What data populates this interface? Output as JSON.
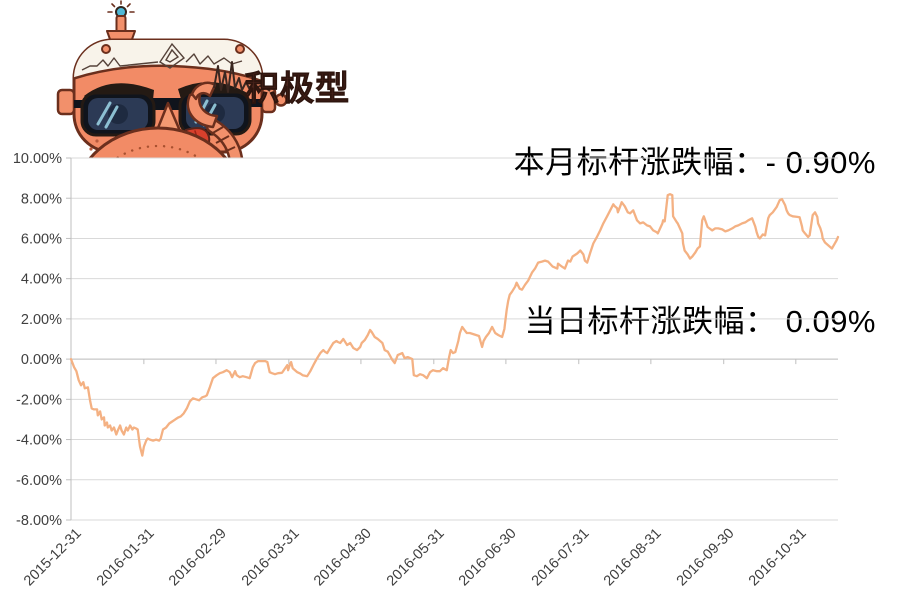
{
  "header": {
    "line1": "本月标杆涨跌幅：- 0.90%",
    "line2": "当日标杆涨跌幅： 0.09%",
    "mascot_badge": "积极型"
  },
  "colors": {
    "line": "#F4B183",
    "gridline": "#D9D9D9",
    "axis": "#BFBFBF",
    "tick_label": "#3F3F3F",
    "headline_text": "#000000",
    "mascot_skin": "#F28B66",
    "mascot_outline": "#6B2F1D",
    "badge_text": "#4A241C"
  },
  "chart_data": {
    "type": "line",
    "title": "",
    "xlabel": "",
    "ylabel": "",
    "legend": "none",
    "grid": "horizontal",
    "ylim": [
      -8,
      10
    ],
    "y_ticks": [
      {
        "value": 10,
        "label": "10.00%"
      },
      {
        "value": 8,
        "label": "8.00%"
      },
      {
        "value": 6,
        "label": "6.00%"
      },
      {
        "value": 4,
        "label": "4.00%"
      },
      {
        "value": 2,
        "label": "2.00%"
      },
      {
        "value": 0,
        "label": "0.00%"
      },
      {
        "value": -2,
        "label": "-2.00%"
      },
      {
        "value": -4,
        "label": "-4.00%"
      },
      {
        "value": -6,
        "label": "-6.00%"
      },
      {
        "value": -8,
        "label": "-8.00%"
      }
    ],
    "x_ticks": [
      {
        "label": "2015-12-31",
        "pos": 0.0
      },
      {
        "label": "2016-01-31",
        "pos": 0.095
      },
      {
        "label": "2016-02-29",
        "pos": 0.189
      },
      {
        "label": "2016-03-31",
        "pos": 0.284
      },
      {
        "label": "2016-04-30",
        "pos": 0.378
      },
      {
        "label": "2016-05-31",
        "pos": 0.473
      },
      {
        "label": "2016-06-30",
        "pos": 0.567
      },
      {
        "label": "2016-07-31",
        "pos": 0.662
      },
      {
        "label": "2016-08-31",
        "pos": 0.756
      },
      {
        "label": "2016-09-30",
        "pos": 0.851
      },
      {
        "label": "2016-10-31",
        "pos": 0.945
      }
    ],
    "points": [
      [
        0.0,
        0.0
      ],
      [
        0.004,
        -0.4
      ],
      [
        0.007,
        -0.6
      ],
      [
        0.01,
        -1.05
      ],
      [
        0.013,
        -1.3
      ],
      [
        0.016,
        -1.15
      ],
      [
        0.018,
        -1.45
      ],
      [
        0.022,
        -1.4
      ],
      [
        0.025,
        -2.1
      ],
      [
        0.027,
        -2.45
      ],
      [
        0.03,
        -2.5
      ],
      [
        0.034,
        -2.5
      ],
      [
        0.035,
        -2.8
      ],
      [
        0.038,
        -2.6
      ],
      [
        0.04,
        -3.0
      ],
      [
        0.043,
        -2.9
      ],
      [
        0.044,
        -3.3
      ],
      [
        0.047,
        -3.15
      ],
      [
        0.048,
        -3.4
      ],
      [
        0.051,
        -3.3
      ],
      [
        0.053,
        -3.55
      ],
      [
        0.056,
        -3.4
      ],
      [
        0.059,
        -3.75
      ],
      [
        0.061,
        -3.55
      ],
      [
        0.064,
        -3.3
      ],
      [
        0.066,
        -3.55
      ],
      [
        0.069,
        -3.75
      ],
      [
        0.072,
        -3.4
      ],
      [
        0.074,
        -3.55
      ],
      [
        0.077,
        -3.3
      ],
      [
        0.08,
        -3.5
      ],
      [
        0.082,
        -3.4
      ],
      [
        0.085,
        -3.45
      ],
      [
        0.087,
        -3.5
      ],
      [
        0.09,
        -4.35
      ],
      [
        0.093,
        -4.8
      ],
      [
        0.095,
        -4.35
      ],
      [
        0.098,
        -4.05
      ],
      [
        0.1,
        -3.95
      ],
      [
        0.103,
        -4.0
      ],
      [
        0.107,
        -4.05
      ],
      [
        0.111,
        -4.0
      ],
      [
        0.115,
        -4.05
      ],
      [
        0.117,
        -3.95
      ],
      [
        0.12,
        -3.5
      ],
      [
        0.124,
        -3.4
      ],
      [
        0.128,
        -3.2
      ],
      [
        0.132,
        -3.1
      ],
      [
        0.136,
        -3.0
      ],
      [
        0.14,
        -2.9
      ],
      [
        0.143,
        -2.85
      ],
      [
        0.147,
        -2.7
      ],
      [
        0.151,
        -2.45
      ],
      [
        0.155,
        -2.1
      ],
      [
        0.159,
        -1.95
      ],
      [
        0.163,
        -2.0
      ],
      [
        0.167,
        -2.05
      ],
      [
        0.171,
        -1.9
      ],
      [
        0.175,
        -1.85
      ],
      [
        0.177,
        -1.8
      ],
      [
        0.181,
        -1.4
      ],
      [
        0.185,
        -0.95
      ],
      [
        0.19,
        -0.8
      ],
      [
        0.194,
        -0.7
      ],
      [
        0.198,
        -0.65
      ],
      [
        0.203,
        -0.55
      ],
      [
        0.207,
        -0.65
      ],
      [
        0.21,
        -0.9
      ],
      [
        0.214,
        -0.6
      ],
      [
        0.216,
        -0.8
      ],
      [
        0.22,
        -0.9
      ],
      [
        0.224,
        -0.85
      ],
      [
        0.229,
        -0.9
      ],
      [
        0.233,
        -0.95
      ],
      [
        0.237,
        -0.4
      ],
      [
        0.24,
        -0.2
      ],
      [
        0.244,
        -0.1
      ],
      [
        0.249,
        -0.1
      ],
      [
        0.253,
        -0.1
      ],
      [
        0.256,
        -0.15
      ],
      [
        0.259,
        -0.65
      ],
      [
        0.262,
        -0.7
      ],
      [
        0.266,
        -0.75
      ],
      [
        0.27,
        -0.7
      ],
      [
        0.275,
        -0.68
      ],
      [
        0.276,
        -0.63
      ],
      [
        0.282,
        -0.3
      ],
      [
        0.283,
        -0.55
      ],
      [
        0.286,
        -0.2
      ],
      [
        0.287,
        -0.15
      ],
      [
        0.289,
        -0.45
      ],
      [
        0.295,
        -0.65
      ],
      [
        0.299,
        -0.72
      ],
      [
        0.302,
        -0.8
      ],
      [
        0.308,
        -0.85
      ],
      [
        0.312,
        -0.6
      ],
      [
        0.316,
        -0.3
      ],
      [
        0.321,
        0.05
      ],
      [
        0.325,
        0.3
      ],
      [
        0.329,
        0.45
      ],
      [
        0.331,
        0.37
      ],
      [
        0.334,
        0.3
      ],
      [
        0.338,
        0.55
      ],
      [
        0.342,
        0.8
      ],
      [
        0.346,
        0.9
      ],
      [
        0.348,
        0.85
      ],
      [
        0.351,
        0.8
      ],
      [
        0.355,
        1.0
      ],
      [
        0.36,
        0.7
      ],
      [
        0.364,
        0.8
      ],
      [
        0.368,
        0.55
      ],
      [
        0.373,
        0.45
      ],
      [
        0.377,
        0.6
      ],
      [
        0.379,
        0.8
      ],
      [
        0.383,
        0.95
      ],
      [
        0.387,
        1.2
      ],
      [
        0.39,
        1.45
      ],
      [
        0.392,
        1.35
      ],
      [
        0.396,
        1.1
      ],
      [
        0.4,
        1.0
      ],
      [
        0.406,
        0.8
      ],
      [
        0.409,
        0.45
      ],
      [
        0.413,
        0.37
      ],
      [
        0.419,
        -0.05
      ],
      [
        0.422,
        -0.2
      ],
      [
        0.426,
        0.2
      ],
      [
        0.432,
        0.3
      ],
      [
        0.435,
        0.05
      ],
      [
        0.439,
        0.1
      ],
      [
        0.445,
        0.0
      ],
      [
        0.447,
        -0.8
      ],
      [
        0.451,
        -0.85
      ],
      [
        0.455,
        -0.75
      ],
      [
        0.459,
        -0.8
      ],
      [
        0.464,
        -0.95
      ],
      [
        0.468,
        -0.65
      ],
      [
        0.472,
        -0.55
      ],
      [
        0.477,
        -0.6
      ],
      [
        0.481,
        -0.6
      ],
      [
        0.485,
        -0.45
      ],
      [
        0.49,
        -0.55
      ],
      [
        0.493,
        0.1
      ],
      [
        0.495,
        0.45
      ],
      [
        0.498,
        0.3
      ],
      [
        0.501,
        0.35
      ],
      [
        0.505,
        0.9
      ],
      [
        0.507,
        1.3
      ],
      [
        0.51,
        1.6
      ],
      [
        0.514,
        1.4
      ],
      [
        0.516,
        1.3
      ],
      [
        0.52,
        1.3
      ],
      [
        0.524,
        1.25
      ],
      [
        0.528,
        1.2
      ],
      [
        0.532,
        1.15
      ],
      [
        0.536,
        0.6
      ],
      [
        0.538,
        0.9
      ],
      [
        0.541,
        1.1
      ],
      [
        0.545,
        1.3
      ],
      [
        0.549,
        1.6
      ],
      [
        0.553,
        1.3
      ],
      [
        0.557,
        1.2
      ],
      [
        0.562,
        1.1
      ],
      [
        0.565,
        1.5
      ],
      [
        0.566,
        1.8
      ],
      [
        0.568,
        2.45
      ],
      [
        0.57,
        2.9
      ],
      [
        0.572,
        3.2
      ],
      [
        0.575,
        3.35
      ],
      [
        0.579,
        3.6
      ],
      [
        0.581,
        3.8
      ],
      [
        0.585,
        3.5
      ],
      [
        0.588,
        3.45
      ],
      [
        0.592,
        3.7
      ],
      [
        0.596,
        3.9
      ],
      [
        0.601,
        4.3
      ],
      [
        0.605,
        4.5
      ],
      [
        0.609,
        4.8
      ],
      [
        0.614,
        4.85
      ],
      [
        0.618,
        4.9
      ],
      [
        0.622,
        4.85
      ],
      [
        0.628,
        4.6
      ],
      [
        0.634,
        4.5
      ],
      [
        0.635,
        4.75
      ],
      [
        0.64,
        4.6
      ],
      [
        0.644,
        4.5
      ],
      [
        0.648,
        4.9
      ],
      [
        0.651,
        4.85
      ],
      [
        0.654,
        5.1
      ],
      [
        0.66,
        5.25
      ],
      [
        0.664,
        5.4
      ],
      [
        0.668,
        5.2
      ],
      [
        0.67,
        4.9
      ],
      [
        0.673,
        4.8
      ],
      [
        0.677,
        5.3
      ],
      [
        0.681,
        5.75
      ],
      [
        0.686,
        6.1
      ],
      [
        0.69,
        6.4
      ],
      [
        0.694,
        6.75
      ],
      [
        0.699,
        7.1
      ],
      [
        0.703,
        7.4
      ],
      [
        0.707,
        7.7
      ],
      [
        0.709,
        7.6
      ],
      [
        0.712,
        7.5
      ],
      [
        0.713,
        7.3
      ],
      [
        0.716,
        7.6
      ],
      [
        0.718,
        7.8
      ],
      [
        0.722,
        7.6
      ],
      [
        0.726,
        7.3
      ],
      [
        0.729,
        7.25
      ],
      [
        0.733,
        7.4
      ],
      [
        0.738,
        6.9
      ],
      [
        0.742,
        6.75
      ],
      [
        0.746,
        6.8
      ],
      [
        0.751,
        6.65
      ],
      [
        0.755,
        6.6
      ],
      [
        0.759,
        6.4
      ],
      [
        0.764,
        6.3
      ],
      [
        0.765,
        6.25
      ],
      [
        0.771,
        6.75
      ],
      [
        0.772,
        6.9
      ],
      [
        0.774,
        6.85
      ],
      [
        0.778,
        8.15
      ],
      [
        0.781,
        8.2
      ],
      [
        0.784,
        8.15
      ],
      [
        0.785,
        7.1
      ],
      [
        0.79,
        6.8
      ],
      [
        0.791,
        6.75
      ],
      [
        0.797,
        6.25
      ],
      [
        0.798,
        5.75
      ],
      [
        0.8,
        5.4
      ],
      [
        0.804,
        5.2
      ],
      [
        0.807,
        5.0
      ],
      [
        0.81,
        5.1
      ],
      [
        0.814,
        5.3
      ],
      [
        0.817,
        5.5
      ],
      [
        0.82,
        5.6
      ],
      [
        0.823,
        6.9
      ],
      [
        0.825,
        7.1
      ],
      [
        0.83,
        6.57
      ],
      [
        0.836,
        6.4
      ],
      [
        0.84,
        6.5
      ],
      [
        0.844,
        6.5
      ],
      [
        0.849,
        6.45
      ],
      [
        0.853,
        6.35
      ],
      [
        0.857,
        6.4
      ],
      [
        0.862,
        6.5
      ],
      [
        0.866,
        6.6
      ],
      [
        0.87,
        6.65
      ],
      [
        0.875,
        6.75
      ],
      [
        0.879,
        6.8
      ],
      [
        0.883,
        6.9
      ],
      [
        0.888,
        7.0
      ],
      [
        0.892,
        6.6
      ],
      [
        0.894,
        6.3
      ],
      [
        0.896,
        6.08
      ],
      [
        0.898,
        6.0
      ],
      [
        0.902,
        6.2
      ],
      [
        0.905,
        6.15
      ],
      [
        0.909,
        7.0
      ],
      [
        0.911,
        7.16
      ],
      [
        0.915,
        7.3
      ],
      [
        0.92,
        7.56
      ],
      [
        0.924,
        7.9
      ],
      [
        0.927,
        7.95
      ],
      [
        0.931,
        7.66
      ],
      [
        0.933,
        7.4
      ],
      [
        0.935,
        7.25
      ],
      [
        0.937,
        7.16
      ],
      [
        0.941,
        7.1
      ],
      [
        0.947,
        7.07
      ],
      [
        0.95,
        7.05
      ],
      [
        0.953,
        6.6
      ],
      [
        0.954,
        6.4
      ],
      [
        0.957,
        6.25
      ],
      [
        0.961,
        6.07
      ],
      [
        0.963,
        6.15
      ],
      [
        0.967,
        7.16
      ],
      [
        0.97,
        7.3
      ],
      [
        0.973,
        7.07
      ],
      [
        0.974,
        6.75
      ],
      [
        0.977,
        6.5
      ],
      [
        0.979,
        6.25
      ],
      [
        0.98,
        6.0
      ],
      [
        0.983,
        5.8
      ],
      [
        0.987,
        5.67
      ],
      [
        0.99,
        5.57
      ],
      [
        0.992,
        5.5
      ],
      [
        0.996,
        5.76
      ],
      [
        0.998,
        5.9
      ],
      [
        1.0,
        6.07
      ]
    ]
  }
}
